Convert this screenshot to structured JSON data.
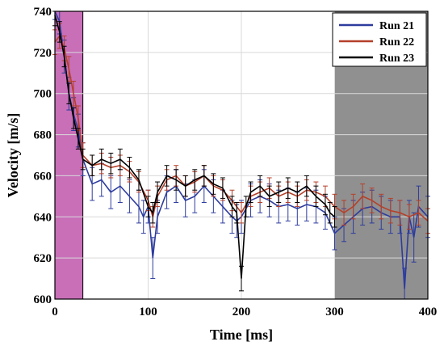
{
  "chart_data": {
    "type": "line",
    "xlabel": "Time [ms]",
    "ylabel": "Velocity [m/s]",
    "xlim": [
      0,
      400
    ],
    "ylim": [
      600,
      740
    ],
    "x_ticks": [
      "0",
      "100",
      "200",
      "300",
      "400"
    ],
    "y_ticks": [
      "600",
      "620",
      "640",
      "660",
      "680",
      "700",
      "720",
      "740"
    ],
    "grid": true,
    "legend_position": "top-right",
    "shaded_regions": [
      {
        "x0": 0,
        "x1": 30,
        "color": "#c86fb8"
      },
      {
        "x0": 300,
        "x1": 400,
        "color": "#909090"
      }
    ],
    "series": [
      {
        "name": "Run 21",
        "color": "#2d3c9e",
        "x": [
          0,
          5,
          10,
          15,
          20,
          25,
          30,
          40,
          50,
          60,
          70,
          80,
          90,
          95,
          100,
          105,
          110,
          120,
          130,
          140,
          150,
          160,
          170,
          180,
          190,
          195,
          200,
          210,
          220,
          230,
          240,
          250,
          260,
          270,
          280,
          290,
          300,
          310,
          320,
          330,
          340,
          350,
          360,
          370,
          375,
          380,
          385,
          390,
          400
        ],
        "y": [
          740,
          735,
          718,
          700,
          690,
          682,
          668,
          656,
          658,
          652,
          655,
          650,
          645,
          640,
          645,
          620,
          640,
          652,
          655,
          648,
          650,
          655,
          650,
          645,
          640,
          638,
          640,
          648,
          650,
          648,
          645,
          646,
          644,
          646,
          645,
          642,
          632,
          636,
          640,
          644,
          645,
          642,
          640,
          640,
          605,
          640,
          630,
          645,
          640
        ],
        "error": [
          4,
          6,
          8,
          8,
          8,
          8,
          8,
          8,
          8,
          8,
          8,
          8,
          8,
          8,
          8,
          10,
          8,
          8,
          8,
          8,
          8,
          8,
          8,
          8,
          8,
          8,
          8,
          8,
          8,
          8,
          8,
          8,
          8,
          8,
          8,
          8,
          8,
          8,
          8,
          8,
          8,
          8,
          8,
          8,
          10,
          8,
          12,
          10,
          10
        ]
      },
      {
        "name": "Run 22",
        "color": "#b5402a",
        "x": [
          0,
          5,
          10,
          15,
          20,
          25,
          30,
          40,
          50,
          60,
          70,
          80,
          90,
          100,
          105,
          110,
          120,
          130,
          140,
          150,
          160,
          170,
          180,
          190,
          200,
          210,
          220,
          230,
          240,
          250,
          260,
          270,
          280,
          290,
          300,
          310,
          320,
          330,
          340,
          350,
          360,
          370,
          380,
          390,
          400
        ],
        "y": [
          725,
          728,
          722,
          712,
          700,
          688,
          670,
          665,
          666,
          664,
          665,
          662,
          657,
          648,
          640,
          650,
          658,
          660,
          655,
          657,
          660,
          655,
          653,
          648,
          642,
          650,
          652,
          654,
          650,
          652,
          650,
          653,
          652,
          650,
          645,
          642,
          645,
          650,
          648,
          645,
          643,
          642,
          640,
          642,
          638
        ],
        "error": [
          6,
          6,
          6,
          6,
          6,
          6,
          6,
          5,
          5,
          5,
          5,
          5,
          5,
          5,
          5,
          5,
          5,
          5,
          5,
          5,
          5,
          5,
          5,
          5,
          5,
          5,
          5,
          5,
          5,
          5,
          5,
          5,
          5,
          5,
          6,
          6,
          6,
          6,
          6,
          6,
          6,
          6,
          6,
          6,
          6
        ]
      },
      {
        "name": "Run 23",
        "color": "#000000",
        "x": [
          0,
          5,
          10,
          15,
          20,
          25,
          30,
          40,
          50,
          60,
          70,
          80,
          90,
          100,
          105,
          110,
          120,
          130,
          140,
          150,
          160,
          170,
          180,
          190,
          195,
          200,
          205,
          210,
          220,
          230,
          240,
          250,
          260,
          270,
          280,
          290,
          295,
          300
        ],
        "y": [
          738,
          730,
          718,
          700,
          688,
          678,
          668,
          665,
          668,
          666,
          668,
          664,
          658,
          645,
          642,
          652,
          660,
          658,
          655,
          658,
          660,
          656,
          654,
          645,
          642,
          610,
          645,
          652,
          655,
          650,
          652,
          654,
          652,
          655,
          650,
          646,
          642,
          640
        ],
        "error": [
          5,
          5,
          5,
          5,
          5,
          5,
          5,
          5,
          5,
          5,
          5,
          5,
          5,
          5,
          5,
          5,
          5,
          5,
          5,
          5,
          5,
          5,
          5,
          5,
          5,
          6,
          5,
          5,
          5,
          5,
          5,
          5,
          5,
          5,
          5,
          5,
          5,
          5
        ]
      }
    ]
  }
}
